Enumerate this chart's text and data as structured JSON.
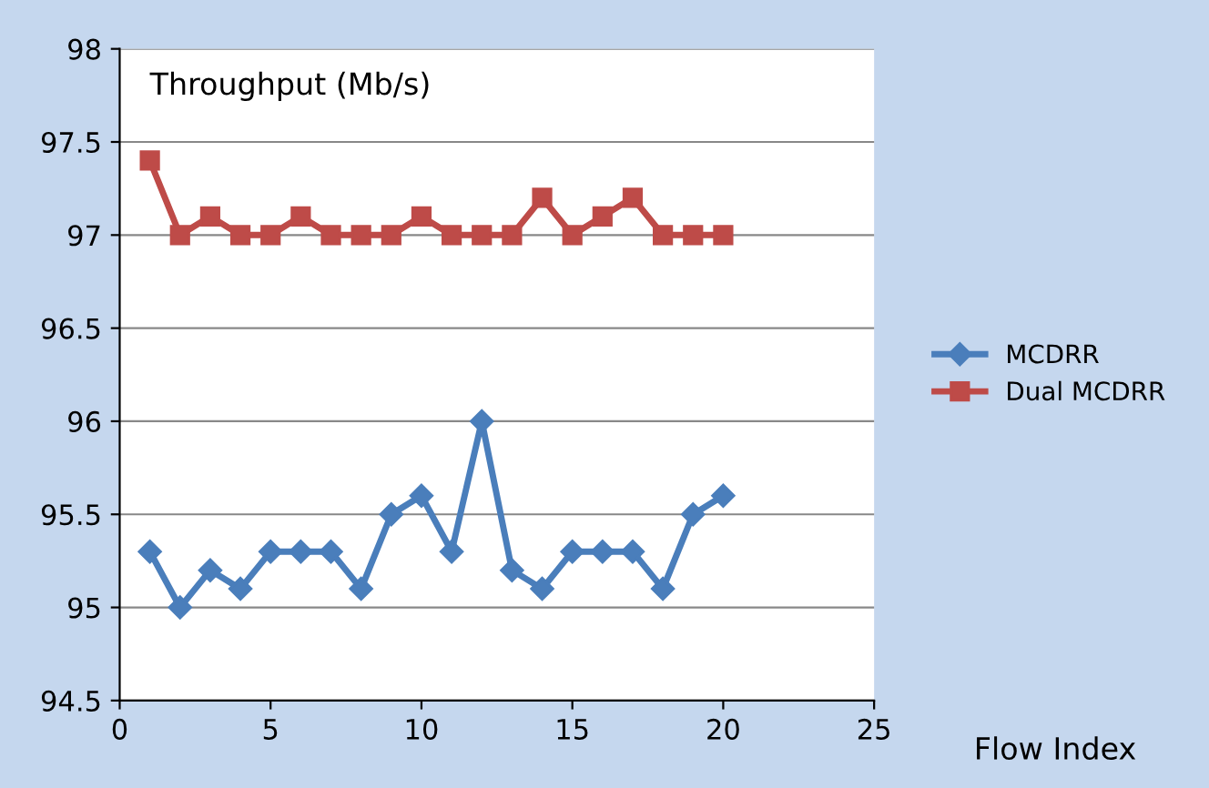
{
  "chart_data": {
    "type": "line",
    "title": "Throughput (Mb/s)",
    "xlabel": "Flow Index",
    "x": [
      1,
      2,
      3,
      4,
      5,
      6,
      7,
      8,
      9,
      10,
      11,
      12,
      13,
      14,
      15,
      16,
      17,
      18,
      19,
      20
    ],
    "series": [
      {
        "name": "MCDRR",
        "color": "#4a7ebb",
        "marker": "diamond",
        "values": [
          95.3,
          95.0,
          95.2,
          95.1,
          95.3,
          95.3,
          95.3,
          95.1,
          95.5,
          95.6,
          95.3,
          96.0,
          95.2,
          95.1,
          95.3,
          95.3,
          95.3,
          95.1,
          95.5,
          95.6
        ]
      },
      {
        "name": "Dual MCDRR",
        "color": "#be4b48",
        "marker": "square",
        "values": [
          97.4,
          97.0,
          97.1,
          97.0,
          97.0,
          97.1,
          97.0,
          97.0,
          97.0,
          97.1,
          97.0,
          97.0,
          97.0,
          97.2,
          97.0,
          97.1,
          97.2,
          97.0,
          97.0,
          97.0
        ]
      }
    ],
    "xlim": [
      0,
      25
    ],
    "xticks": [
      0,
      5,
      10,
      15,
      20,
      25
    ],
    "ylim": [
      94.5,
      98
    ],
    "yticks": [
      94.5,
      95,
      95.5,
      96,
      96.5,
      97,
      97.5,
      98
    ],
    "grid": "y",
    "legend": "right",
    "line_style": "solid"
  }
}
